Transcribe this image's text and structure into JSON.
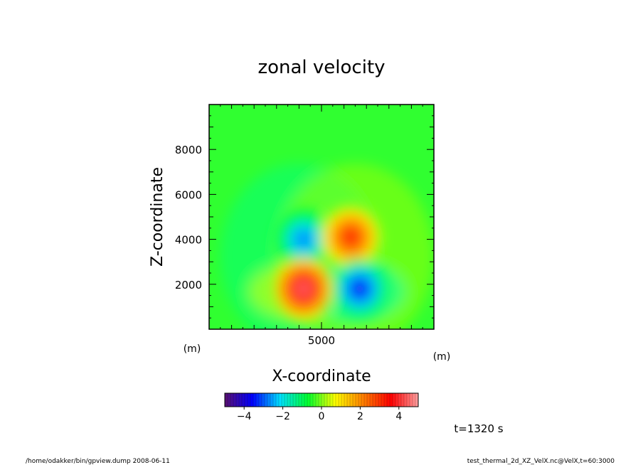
{
  "chart_data": {
    "type": "heatmap",
    "title": "zonal velocity",
    "xlabel": "X-coordinate",
    "ylabel": "Z-coordinate",
    "x_unit": "(m)",
    "y_unit": "(m)",
    "xlim": [
      0,
      10000
    ],
    "ylim": [
      0,
      10000
    ],
    "x_major_ticks": [
      5000
    ],
    "y_major_ticks": [
      2000,
      4000,
      6000,
      8000
    ],
    "field_features": [
      {
        "x": 4200,
        "z": 4000,
        "value": -2.8
      },
      {
        "x": 6300,
        "z": 4100,
        "value": 3.2
      },
      {
        "x": 4200,
        "z": 1800,
        "value": 4.5
      },
      {
        "x": 6700,
        "z": 1800,
        "value": -3.7
      }
    ],
    "colorbar": {
      "range": [
        -5,
        5
      ],
      "ticks": [
        -4,
        -2,
        0,
        2,
        4
      ],
      "tick_labels": [
        "−4",
        "−2",
        "0",
        "2",
        "4"
      ]
    },
    "colormap": [
      "#5a1070",
      "#0000ff",
      "#00e0ff",
      "#00ff30",
      "#ffff00",
      "#ff8000",
      "#ff0000",
      "#ffa0a0"
    ],
    "time_label": "t=1320 s"
  },
  "footer": {
    "left": "/home/odakker/bin/gpview.dump  2008-06-11",
    "right": "test_thermal_2d_XZ_VelX.nc@VelX,t=60:3000"
  }
}
